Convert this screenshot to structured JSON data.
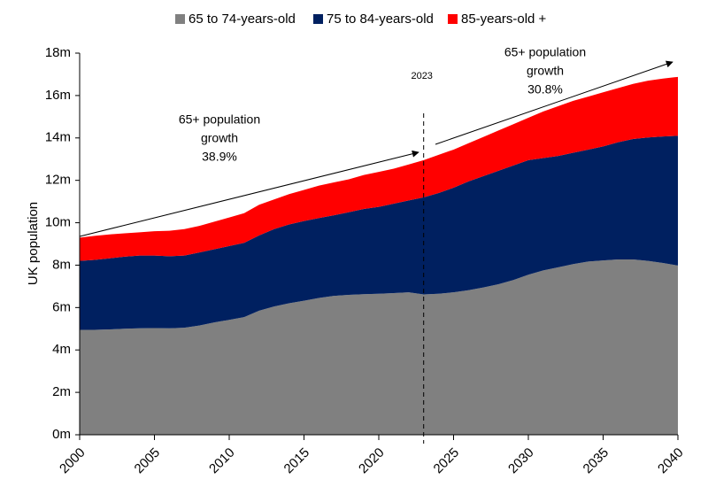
{
  "chart_data": {
    "type": "stacked-area",
    "x": [
      2000,
      2001,
      2002,
      2003,
      2004,
      2005,
      2006,
      2007,
      2008,
      2009,
      2010,
      2011,
      2012,
      2013,
      2014,
      2015,
      2016,
      2017,
      2018,
      2019,
      2020,
      2021,
      2022,
      2023,
      2024,
      2025,
      2026,
      2027,
      2028,
      2029,
      2030,
      2031,
      2032,
      2033,
      2034,
      2035,
      2036,
      2037,
      2038,
      2039,
      2040
    ],
    "series": [
      {
        "name": "65 to 74-years-old",
        "color": "#808080",
        "values": [
          4.95,
          4.95,
          4.97,
          5.0,
          5.02,
          5.03,
          5.02,
          5.05,
          5.15,
          5.3,
          5.42,
          5.55,
          5.85,
          6.05,
          6.2,
          6.32,
          6.45,
          6.55,
          6.6,
          6.63,
          6.65,
          6.68,
          6.72,
          6.62,
          6.65,
          6.72,
          6.82,
          6.95,
          7.1,
          7.3,
          7.55,
          7.75,
          7.9,
          8.05,
          8.17,
          8.22,
          8.27,
          8.27,
          8.2,
          8.1,
          7.98
        ]
      },
      {
        "name": "75 to 84-years-old",
        "color": "#002060",
        "values": [
          3.25,
          3.3,
          3.35,
          3.4,
          3.43,
          3.42,
          3.4,
          3.4,
          3.45,
          3.45,
          3.48,
          3.5,
          3.55,
          3.65,
          3.72,
          3.76,
          3.77,
          3.8,
          3.9,
          4.02,
          4.1,
          4.22,
          4.33,
          4.58,
          4.75,
          4.93,
          5.13,
          5.25,
          5.35,
          5.4,
          5.4,
          5.3,
          5.25,
          5.25,
          5.28,
          5.38,
          5.53,
          5.68,
          5.82,
          5.97,
          6.12
        ]
      },
      {
        "name": "85-years-old +",
        "color": "#ff0000",
        "values": [
          1.1,
          1.13,
          1.13,
          1.1,
          1.1,
          1.15,
          1.2,
          1.25,
          1.25,
          1.3,
          1.35,
          1.4,
          1.45,
          1.4,
          1.43,
          1.47,
          1.53,
          1.55,
          1.55,
          1.6,
          1.65,
          1.65,
          1.7,
          1.75,
          1.8,
          1.8,
          1.8,
          1.85,
          1.9,
          1.95,
          2.0,
          2.2,
          2.35,
          2.45,
          2.5,
          2.55,
          2.55,
          2.6,
          2.68,
          2.73,
          2.78
        ]
      }
    ],
    "xlim": [
      2000,
      2040
    ],
    "xticks": [
      2000,
      2005,
      2010,
      2015,
      2020,
      2025,
      2030,
      2035,
      2040
    ],
    "ylim": [
      0,
      18
    ],
    "yticks": [
      {
        "value": 0,
        "label": "0m"
      },
      {
        "value": 2,
        "label": "2m"
      },
      {
        "value": 4,
        "label": "4m"
      },
      {
        "value": 6,
        "label": "6m"
      },
      {
        "value": 8,
        "label": "8m"
      },
      {
        "value": 10,
        "label": "10m"
      },
      {
        "value": 12,
        "label": "12m"
      },
      {
        "value": 14,
        "label": "14m"
      },
      {
        "value": 16,
        "label": "16m"
      },
      {
        "value": 18,
        "label": "18m"
      }
    ],
    "y_label": "UK population",
    "legend": "top",
    "reference_line": {
      "x": 2023,
      "label": "2023"
    },
    "annotations": [
      {
        "lines": [
          "65+ population",
          "growth",
          "38.9%"
        ]
      },
      {
        "lines": [
          "65+ population",
          "growth",
          "30.8%"
        ]
      }
    ]
  }
}
